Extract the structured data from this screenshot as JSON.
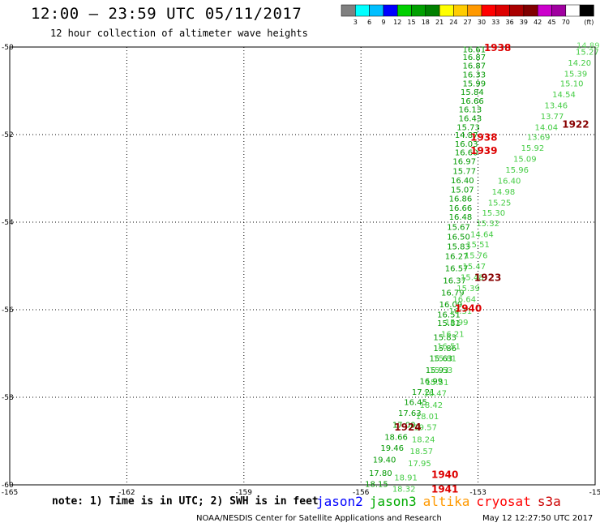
{
  "header": {
    "title": "12:00 – 23:59 UTC 05/11/2017",
    "subtitle": "12 hour collection of altimeter wave heights"
  },
  "colorbar": {
    "unit_label": "(ft)",
    "colors": [
      "#808080",
      "#00ffff",
      "#00bfff",
      "#0000ff",
      "#00d000",
      "#00a000",
      "#008000",
      "#ffff00",
      "#ffcc00",
      "#ff9900",
      "#ff0000",
      "#dd0000",
      "#aa0000",
      "#800000",
      "#cc00cc",
      "#a000a0",
      "#ffffff",
      "#000000"
    ],
    "ticks": [
      "3",
      "6",
      "9",
      "12",
      "15",
      "18",
      "21",
      "24",
      "27",
      "30",
      "33",
      "36",
      "39",
      "42",
      "45",
      "70"
    ]
  },
  "footer": {
    "note": "note: 1) Time is in UTC; 2) SWH is in feet",
    "credit": "NOAA/NESDIS Center for Satellite Applications and Research",
    "timestamp": "May 12 12:27:50 UTC 2017"
  },
  "missions": [
    {
      "name": "jason2",
      "color": "#0000ff"
    },
    {
      "name": "jason3",
      "color": "#00aa00"
    },
    {
      "name": "altika",
      "color": "#ff9900"
    },
    {
      "name": "cryosat",
      "color": "#ff0000"
    },
    {
      "name": "s3a",
      "color": "#cc0000"
    }
  ],
  "chart_data": {
    "type": "scatter",
    "xlim": [
      -165,
      -150
    ],
    "ylim": [
      -60,
      -50
    ],
    "x_ticks": [
      "-165",
      "-162",
      "-159",
      "-156",
      "-153",
      "-15"
    ],
    "y_ticks": [
      "-50",
      "-52",
      "-54",
      "-56",
      "-58",
      "-60"
    ],
    "grid": true,
    "tracks": [
      {
        "name": "track-a",
        "color": "#009900",
        "points": [
          {
            "x": -153.1,
            "y": -50.05,
            "label": "16.61"
          },
          {
            "x": -153.1,
            "y": -50.22,
            "label": "16.87"
          },
          {
            "x": -153.1,
            "y": -50.42,
            "label": "16.87"
          },
          {
            "x": -153.1,
            "y": -50.62,
            "label": "16.33"
          },
          {
            "x": -153.1,
            "y": -50.82,
            "label": "15.99"
          },
          {
            "x": -153.15,
            "y": -51.02,
            "label": "15.84"
          },
          {
            "x": -153.15,
            "y": -51.22,
            "label": "16.66"
          },
          {
            "x": -153.2,
            "y": -51.42,
            "label": "16.13"
          },
          {
            "x": -153.2,
            "y": -51.62,
            "label": "16.43"
          },
          {
            "x": -153.25,
            "y": -51.82,
            "label": "15.73"
          },
          {
            "x": -153.3,
            "y": -52.0,
            "label": "14.87"
          },
          {
            "x": -153.3,
            "y": -52.2,
            "label": "16.03"
          },
          {
            "x": -153.3,
            "y": -52.4,
            "label": "16.60"
          },
          {
            "x": -153.35,
            "y": -52.6,
            "label": "16.97"
          },
          {
            "x": -153.35,
            "y": -52.82,
            "label": "15.77"
          },
          {
            "x": -153.4,
            "y": -53.04,
            "label": "16.40"
          },
          {
            "x": -153.4,
            "y": -53.25,
            "label": "15.07"
          },
          {
            "x": -153.45,
            "y": -53.45,
            "label": "16.86"
          },
          {
            "x": -153.45,
            "y": -53.67,
            "label": "16.66"
          },
          {
            "x": -153.45,
            "y": -53.87,
            "label": "16.48"
          },
          {
            "x": -153.5,
            "y": -54.1,
            "label": "15.67"
          },
          {
            "x": -153.5,
            "y": -54.32,
            "label": "16.50"
          },
          {
            "x": -153.5,
            "y": -54.55,
            "label": "15.83"
          },
          {
            "x": -153.55,
            "y": -54.77,
            "label": "16.27"
          },
          {
            "x": -153.55,
            "y": -55.05,
            "label": "16.57"
          },
          {
            "x": -153.6,
            "y": -55.32,
            "label": "16.37"
          },
          {
            "x": -153.65,
            "y": -55.6,
            "label": "16.79"
          },
          {
            "x": -153.7,
            "y": -55.87,
            "label": "16.09"
          },
          {
            "x": -153.75,
            "y": -56.1,
            "label": "16.51"
          },
          {
            "x": -153.75,
            "y": -56.3,
            "label": "15.81"
          },
          {
            "x": -153.85,
            "y": -56.62,
            "label": "15.83"
          },
          {
            "x": -153.85,
            "y": -56.87,
            "label": "15.86"
          },
          {
            "x": -153.95,
            "y": -57.1,
            "label": "15.63"
          },
          {
            "x": -154.05,
            "y": -57.37,
            "label": "15.93"
          },
          {
            "x": -154.2,
            "y": -57.62,
            "label": "16.99"
          },
          {
            "x": -154.4,
            "y": -57.87,
            "label": "17.21"
          },
          {
            "x": -154.6,
            "y": -58.1,
            "label": "16.45"
          },
          {
            "x": -154.75,
            "y": -58.35,
            "label": "17.63"
          },
          {
            "x": -154.9,
            "y": -58.62,
            "label": "17.00"
          },
          {
            "x": -155.1,
            "y": -58.9,
            "label": "18.66"
          },
          {
            "x": -155.2,
            "y": -59.15,
            "label": "19.46"
          },
          {
            "x": -155.4,
            "y": -59.42,
            "label": "19.40"
          },
          {
            "x": -155.5,
            "y": -59.72,
            "label": "17.80"
          },
          {
            "x": -155.6,
            "y": -59.97,
            "label": "18.15"
          }
        ]
      },
      {
        "name": "track-b",
        "color": "#44cc44",
        "points": [
          {
            "x": -150.2,
            "y": -50.1,
            "label": "15.27"
          },
          {
            "x": -150.4,
            "y": -50.35,
            "label": "14.20"
          },
          {
            "x": -150.5,
            "y": -50.6,
            "label": "15.39"
          },
          {
            "x": -150.6,
            "y": -50.82,
            "label": "15.10"
          },
          {
            "x": -150.8,
            "y": -51.07,
            "label": "14.54"
          },
          {
            "x": -151.0,
            "y": -51.32,
            "label": "13.46"
          },
          {
            "x": -151.1,
            "y": -51.57,
            "label": "13.77"
          },
          {
            "x": -151.25,
            "y": -51.82,
            "label": "14.04"
          },
          {
            "x": -151.45,
            "y": -52.05,
            "label": "13.69"
          },
          {
            "x": -151.6,
            "y": -52.3,
            "label": "15.92"
          },
          {
            "x": -151.8,
            "y": -52.55,
            "label": "15.09"
          },
          {
            "x": -152.0,
            "y": -52.8,
            "label": "15.96"
          },
          {
            "x": -152.2,
            "y": -53.05,
            "label": "16.40"
          },
          {
            "x": -152.35,
            "y": -53.3,
            "label": "14.98"
          },
          {
            "x": -152.45,
            "y": -53.55,
            "label": "15.25"
          },
          {
            "x": -152.6,
            "y": -53.78,
            "label": "15.30"
          },
          {
            "x": -152.75,
            "y": -54.02,
            "label": "15.32"
          },
          {
            "x": -152.9,
            "y": -54.27,
            "label": "14.64"
          },
          {
            "x": -153.0,
            "y": -54.5,
            "label": "15.51"
          },
          {
            "x": -153.05,
            "y": -54.75,
            "label": "15.76"
          },
          {
            "x": -153.1,
            "y": -55.0,
            "label": "15.47"
          },
          {
            "x": -153.15,
            "y": -55.25,
            "label": "15.48"
          },
          {
            "x": -153.25,
            "y": -55.5,
            "label": "15.39"
          },
          {
            "x": -153.35,
            "y": -55.75,
            "label": "16.64"
          },
          {
            "x": -153.45,
            "y": -56.02,
            "label": "16.31"
          },
          {
            "x": -153.55,
            "y": -56.28,
            "label": "15.99"
          },
          {
            "x": -153.65,
            "y": -56.55,
            "label": "16.21"
          },
          {
            "x": -153.75,
            "y": -56.82,
            "label": "16.51"
          },
          {
            "x": -153.85,
            "y": -57.1,
            "label": "15.81"
          },
          {
            "x": -153.95,
            "y": -57.37,
            "label": "15.53"
          },
          {
            "x": -154.05,
            "y": -57.65,
            "label": "15.51"
          },
          {
            "x": -154.1,
            "y": -57.9,
            "label": "16.47"
          },
          {
            "x": -154.2,
            "y": -58.17,
            "label": "18.42"
          },
          {
            "x": -154.3,
            "y": -58.43,
            "label": "18.01"
          },
          {
            "x": -154.35,
            "y": -58.68,
            "label": "19.57"
          },
          {
            "x": -154.4,
            "y": -58.95,
            "label": "18.24"
          },
          {
            "x": -154.45,
            "y": -59.22,
            "label": "18.57"
          },
          {
            "x": -154.5,
            "y": -59.5,
            "label": "17.95"
          },
          {
            "x": -154.85,
            "y": -59.82,
            "label": "18.91"
          },
          {
            "x": -154.9,
            "y": -60.08,
            "label": "18.32"
          }
        ]
      }
    ],
    "outlier_labels": [
      {
        "x": -150.18,
        "y": -49.95,
        "label": "14.89",
        "color": "#66dd66"
      }
    ],
    "time_labels": [
      {
        "x": -152.5,
        "y": -50.0,
        "label": "1938",
        "color": "#dd0000"
      },
      {
        "x": -152.85,
        "y": -52.05,
        "label": "1938",
        "color": "#dd0000"
      },
      {
        "x": -152.85,
        "y": -52.35,
        "label": "1939",
        "color": "#dd0000"
      },
      {
        "x": -150.5,
        "y": -51.75,
        "label": "1922",
        "color": "#880000"
      },
      {
        "x": -152.75,
        "y": -55.25,
        "label": "1923",
        "color": "#880000"
      },
      {
        "x": -153.25,
        "y": -55.95,
        "label": "1940",
        "color": "#dd0000"
      },
      {
        "x": -154.8,
        "y": -58.67,
        "label": "1924",
        "color": "#880000"
      },
      {
        "x": -153.85,
        "y": -59.75,
        "label": "1940",
        "color": "#dd0000"
      },
      {
        "x": -153.85,
        "y": -60.08,
        "label": "1941",
        "color": "#dd0000"
      }
    ]
  }
}
